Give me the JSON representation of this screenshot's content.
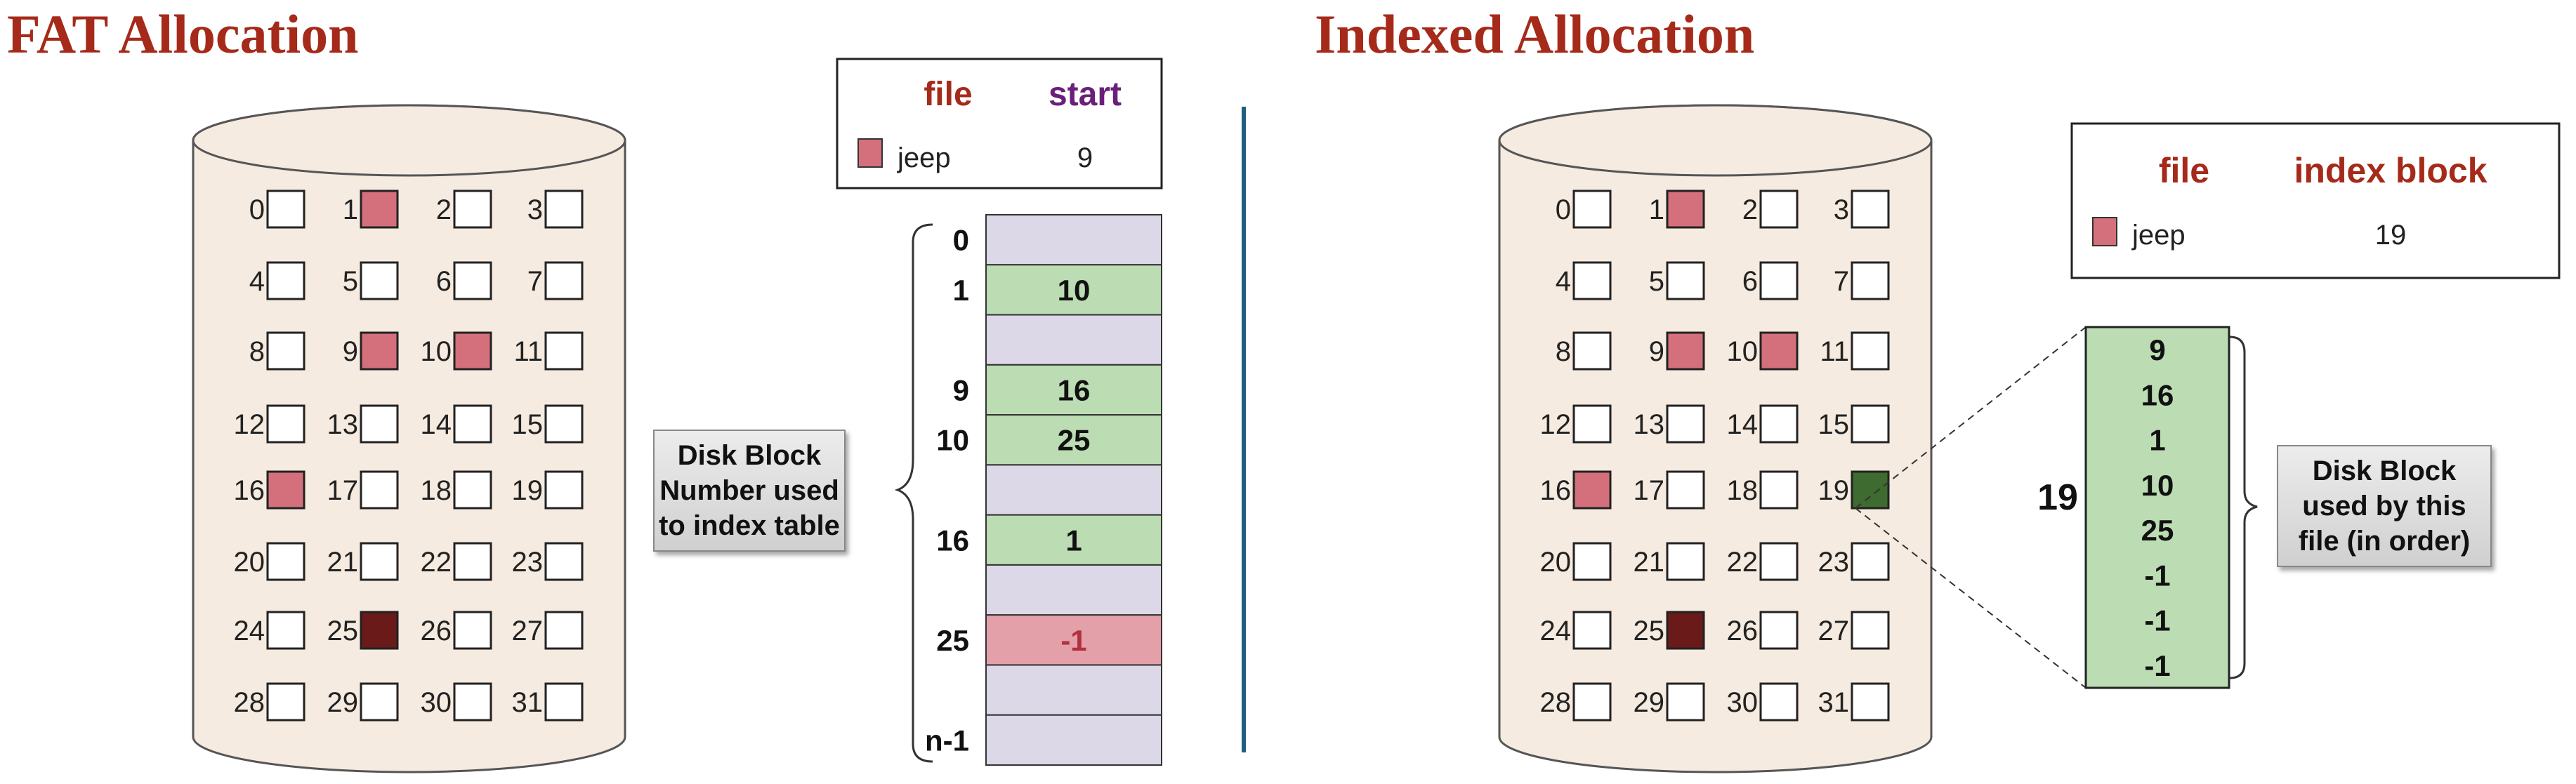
{
  "titles": {
    "fat": "FAT Allocation",
    "indexed": "Indexed Allocation"
  },
  "colors": {
    "title": "#a52a1a",
    "cylinder": "#f5ebe0",
    "file_block": "#d4707c",
    "last_block": "#6b1a1a",
    "index_block": "#3e6b30",
    "fat_entry": "#bcdcb4",
    "fat_empty": "#dcd8e8",
    "fat_end": "#e4a0a8"
  },
  "disk": {
    "block_labels": [
      "0",
      "1",
      "2",
      "3",
      "4",
      "5",
      "6",
      "7",
      "8",
      "9",
      "10",
      "11",
      "12",
      "13",
      "14",
      "15",
      "16",
      "17",
      "18",
      "19",
      "20",
      "21",
      "22",
      "23",
      "24",
      "25",
      "26",
      "27",
      "28",
      "29",
      "30",
      "31"
    ],
    "fat_file_blocks": [
      1,
      9,
      10,
      16
    ],
    "fat_last_block": 25,
    "indexed_file_blocks": [
      1,
      9,
      10,
      16
    ],
    "indexed_last_block": 25,
    "indexed_index_block": 19
  },
  "fat_directory": {
    "headers": {
      "file": "file",
      "start": "start"
    },
    "row": {
      "name": "jeep",
      "start": "9"
    }
  },
  "fat_table": {
    "rows": [
      {
        "label": "0",
        "value": "",
        "kind": "empty"
      },
      {
        "label": "1",
        "value": "10",
        "kind": "entry"
      },
      {
        "label": "",
        "value": "",
        "kind": "empty"
      },
      {
        "label": "9",
        "value": "16",
        "kind": "entry"
      },
      {
        "label": "10",
        "value": "25",
        "kind": "entry"
      },
      {
        "label": "",
        "value": "",
        "kind": "empty"
      },
      {
        "label": "16",
        "value": "1",
        "kind": "entry"
      },
      {
        "label": "",
        "value": "",
        "kind": "empty"
      },
      {
        "label": "25",
        "value": "-1",
        "kind": "end"
      },
      {
        "label": "",
        "value": "",
        "kind": "empty"
      },
      {
        "label": "n-1",
        "value": "",
        "kind": "empty"
      }
    ]
  },
  "fat_callout": [
    "Disk Block",
    "Number used",
    "to index table"
  ],
  "indexed_directory": {
    "headers": {
      "file": "file",
      "index": "index block"
    },
    "row": {
      "name": "jeep",
      "index": "19"
    }
  },
  "index_block": {
    "label": "19",
    "values": [
      "9",
      "16",
      "1",
      "10",
      "25",
      "-1",
      "-1",
      "-1"
    ]
  },
  "indexed_callout": [
    "Disk Block",
    "used by this",
    "file (in order)"
  ]
}
